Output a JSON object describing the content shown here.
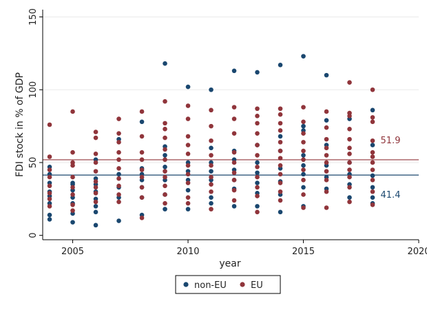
{
  "chart_data": {
    "type": "scatter",
    "xlabel": "year",
    "ylabel": "FDI stock in % of GDP",
    "xlim": [
      2003.7,
      2020
    ],
    "ylim": [
      -3,
      155
    ],
    "xticks": [
      2005,
      2010,
      2015,
      2020
    ],
    "yticks": [
      0,
      50,
      100,
      150
    ],
    "grid": "horizontal",
    "legend": "bottom",
    "series": [
      {
        "name": "non-EU",
        "color": "#1a476f",
        "points": [
          [
            2004,
            47
          ],
          [
            2004,
            42
          ],
          [
            2004,
            36
          ],
          [
            2004,
            30
          ],
          [
            2004,
            27
          ],
          [
            2004,
            22
          ],
          [
            2004,
            14
          ],
          [
            2004,
            11
          ],
          [
            2005,
            36
          ],
          [
            2005,
            35
          ],
          [
            2005,
            31
          ],
          [
            2005,
            26
          ],
          [
            2005,
            22
          ],
          [
            2005,
            15
          ],
          [
            2005,
            9
          ],
          [
            2006,
            52
          ],
          [
            2006,
            39
          ],
          [
            2006,
            35
          ],
          [
            2006,
            30
          ],
          [
            2006,
            25
          ],
          [
            2006,
            20
          ],
          [
            2006,
            16
          ],
          [
            2006,
            7
          ],
          [
            2007,
            66
          ],
          [
            2007,
            42
          ],
          [
            2007,
            33
          ],
          [
            2007,
            26
          ],
          [
            2007,
            10
          ],
          [
            2008,
            78
          ],
          [
            2008,
            46
          ],
          [
            2008,
            42
          ],
          [
            2008,
            38
          ],
          [
            2008,
            33
          ],
          [
            2008,
            26
          ],
          [
            2008,
            14
          ],
          [
            2009,
            118
          ],
          [
            2009,
            61
          ],
          [
            2009,
            55
          ],
          [
            2009,
            47
          ],
          [
            2009,
            38
          ],
          [
            2009,
            28
          ],
          [
            2009,
            18
          ],
          [
            2010,
            102
          ],
          [
            2010,
            50
          ],
          [
            2010,
            44
          ],
          [
            2010,
            38
          ],
          [
            2010,
            31
          ],
          [
            2010,
            18
          ],
          [
            2011,
            100
          ],
          [
            2011,
            60
          ],
          [
            2011,
            50
          ],
          [
            2011,
            44
          ],
          [
            2011,
            38
          ],
          [
            2011,
            26
          ],
          [
            2011,
            22
          ],
          [
            2012,
            113
          ],
          [
            2012,
            58
          ],
          [
            2012,
            52
          ],
          [
            2012,
            45
          ],
          [
            2012,
            38
          ],
          [
            2012,
            32
          ],
          [
            2012,
            20
          ],
          [
            2013,
            112
          ],
          [
            2013,
            62
          ],
          [
            2013,
            50
          ],
          [
            2013,
            43
          ],
          [
            2013,
            36
          ],
          [
            2013,
            29
          ],
          [
            2013,
            20
          ],
          [
            2014,
            117
          ],
          [
            2014,
            68
          ],
          [
            2014,
            58
          ],
          [
            2014,
            46
          ],
          [
            2014,
            37
          ],
          [
            2014,
            28
          ],
          [
            2014,
            16
          ],
          [
            2015,
            123
          ],
          [
            2015,
            75
          ],
          [
            2015,
            72
          ],
          [
            2015,
            55
          ],
          [
            2015,
            48
          ],
          [
            2015,
            42
          ],
          [
            2015,
            33
          ],
          [
            2015,
            20
          ],
          [
            2016,
            110
          ],
          [
            2016,
            79
          ],
          [
            2016,
            62
          ],
          [
            2016,
            48
          ],
          [
            2016,
            40
          ],
          [
            2016,
            32
          ],
          [
            2017,
            80
          ],
          [
            2017,
            50
          ],
          [
            2017,
            42
          ],
          [
            2017,
            35
          ],
          [
            2017,
            26
          ],
          [
            2018,
            86
          ],
          [
            2018,
            62
          ],
          [
            2018,
            41
          ],
          [
            2018,
            33
          ],
          [
            2018,
            26
          ],
          [
            2018,
            22
          ]
        ]
      },
      {
        "name": "EU",
        "color": "#90353b",
        "points": [
          [
            2004,
            76
          ],
          [
            2004,
            54
          ],
          [
            2004,
            45
          ],
          [
            2004,
            40
          ],
          [
            2004,
            34
          ],
          [
            2004,
            29
          ],
          [
            2004,
            25
          ],
          [
            2004,
            20
          ],
          [
            2005,
            85
          ],
          [
            2005,
            57
          ],
          [
            2005,
            50
          ],
          [
            2005,
            48
          ],
          [
            2005,
            40
          ],
          [
            2005,
            33
          ],
          [
            2005,
            28
          ],
          [
            2005,
            21
          ],
          [
            2005,
            17
          ],
          [
            2006,
            71
          ],
          [
            2006,
            67
          ],
          [
            2006,
            56
          ],
          [
            2006,
            50
          ],
          [
            2006,
            44
          ],
          [
            2006,
            37
          ],
          [
            2006,
            33
          ],
          [
            2006,
            29
          ],
          [
            2006,
            23
          ],
          [
            2007,
            80
          ],
          [
            2007,
            70
          ],
          [
            2007,
            64
          ],
          [
            2007,
            57
          ],
          [
            2007,
            52
          ],
          [
            2007,
            46
          ],
          [
            2007,
            39
          ],
          [
            2007,
            34
          ],
          [
            2007,
            28
          ],
          [
            2007,
            23
          ],
          [
            2008,
            85
          ],
          [
            2008,
            68
          ],
          [
            2008,
            57
          ],
          [
            2008,
            52
          ],
          [
            2008,
            45
          ],
          [
            2008,
            40
          ],
          [
            2008,
            33
          ],
          [
            2008,
            26
          ],
          [
            2008,
            12
          ],
          [
            2009,
            92
          ],
          [
            2009,
            77
          ],
          [
            2009,
            73
          ],
          [
            2009,
            67
          ],
          [
            2009,
            59
          ],
          [
            2009,
            52
          ],
          [
            2009,
            44
          ],
          [
            2009,
            40
          ],
          [
            2009,
            34
          ],
          [
            2009,
            28
          ],
          [
            2009,
            22
          ],
          [
            2010,
            89
          ],
          [
            2010,
            80
          ],
          [
            2010,
            68
          ],
          [
            2010,
            62
          ],
          [
            2010,
            56
          ],
          [
            2010,
            48
          ],
          [
            2010,
            42
          ],
          [
            2010,
            36
          ],
          [
            2010,
            26
          ],
          [
            2010,
            22
          ],
          [
            2011,
            86
          ],
          [
            2011,
            75
          ],
          [
            2011,
            65
          ],
          [
            2011,
            55
          ],
          [
            2011,
            48
          ],
          [
            2011,
            40
          ],
          [
            2011,
            35
          ],
          [
            2011,
            30
          ],
          [
            2011,
            18
          ],
          [
            2012,
            88
          ],
          [
            2012,
            80
          ],
          [
            2012,
            70
          ],
          [
            2012,
            57
          ],
          [
            2012,
            50
          ],
          [
            2012,
            43
          ],
          [
            2012,
            38
          ],
          [
            2012,
            31
          ],
          [
            2012,
            24
          ],
          [
            2013,
            87
          ],
          [
            2013,
            82
          ],
          [
            2013,
            77
          ],
          [
            2013,
            70
          ],
          [
            2013,
            62
          ],
          [
            2013,
            55
          ],
          [
            2013,
            47
          ],
          [
            2013,
            40
          ],
          [
            2013,
            33
          ],
          [
            2013,
            27
          ],
          [
            2013,
            16
          ],
          [
            2014,
            87
          ],
          [
            2014,
            83
          ],
          [
            2014,
            77
          ],
          [
            2014,
            72
          ],
          [
            2014,
            64
          ],
          [
            2014,
            58
          ],
          [
            2014,
            53
          ],
          [
            2014,
            48
          ],
          [
            2014,
            42
          ],
          [
            2014,
            36
          ],
          [
            2014,
            30
          ],
          [
            2014,
            24
          ],
          [
            2015,
            88
          ],
          [
            2015,
            78
          ],
          [
            2015,
            70
          ],
          [
            2015,
            64
          ],
          [
            2015,
            58
          ],
          [
            2015,
            52
          ],
          [
            2015,
            45
          ],
          [
            2015,
            38
          ],
          [
            2015,
            28
          ],
          [
            2015,
            19
          ],
          [
            2016,
            85
          ],
          [
            2016,
            74
          ],
          [
            2016,
            66
          ],
          [
            2016,
            60
          ],
          [
            2016,
            55
          ],
          [
            2016,
            50
          ],
          [
            2016,
            44
          ],
          [
            2016,
            38
          ],
          [
            2016,
            30
          ],
          [
            2016,
            19
          ],
          [
            2017,
            105
          ],
          [
            2017,
            84
          ],
          [
            2017,
            82
          ],
          [
            2017,
            73
          ],
          [
            2017,
            66
          ],
          [
            2017,
            60
          ],
          [
            2017,
            56
          ],
          [
            2017,
            50
          ],
          [
            2017,
            45
          ],
          [
            2017,
            40
          ],
          [
            2017,
            33
          ],
          [
            2017,
            23
          ],
          [
            2018,
            100
          ],
          [
            2018,
            81
          ],
          [
            2018,
            78
          ],
          [
            2018,
            65
          ],
          [
            2018,
            57
          ],
          [
            2018,
            54
          ],
          [
            2018,
            50
          ],
          [
            2018,
            45
          ],
          [
            2018,
            38
          ],
          [
            2018,
            30
          ],
          [
            2018,
            21
          ]
        ]
      }
    ],
    "reference_lines": [
      {
        "value": 51.9,
        "label": "51.9",
        "color": "#90353b"
      },
      {
        "value": 41.4,
        "label": "41.4",
        "color": "#1a476f"
      }
    ]
  }
}
